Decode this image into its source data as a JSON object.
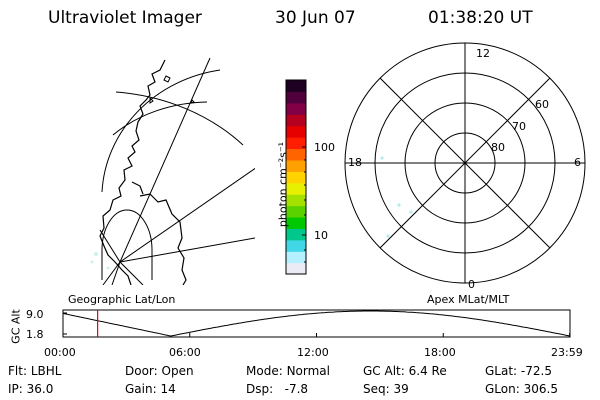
{
  "header": {
    "title": "Ultraviolet Imager",
    "date": "30 Jun 07",
    "time": "01:38:20 UT"
  },
  "colorbar": {
    "label": "photon cm⁻²s⁻¹",
    "ticks": [
      "100",
      "10"
    ],
    "colors": [
      "#ebebf5",
      "#b4f0ff",
      "#41d7e6",
      "#00c88c",
      "#00c800",
      "#5ad200",
      "#a5e100",
      "#e6f000",
      "#ffd200",
      "#ffa000",
      "#ff6400",
      "#ff1e00",
      "#e60000",
      "#b4001e",
      "#820046",
      "#50003c",
      "#1e0023"
    ]
  },
  "left_panel": {
    "label": "Geographic Lat/Lon"
  },
  "right_panel": {
    "label": "Apex MLat/MLT",
    "lat_labels": [
      "60",
      "70",
      "80"
    ],
    "mlt_labels": {
      "top": "12",
      "bottom": "0",
      "left": "18",
      "right": "6"
    }
  },
  "altitude_plot": {
    "ylabel": "GC Alt",
    "yticks": [
      "9.0",
      "1.8"
    ],
    "xticks": [
      "00:00",
      "06:00",
      "12:00",
      "18:00",
      "23:59"
    ],
    "marker_color": "#e60000",
    "marker_time": "01:38:20"
  },
  "info": {
    "row1": [
      {
        "label": "Flt:",
        "value": "LBHL"
      },
      {
        "label": "Door:",
        "value": "Open"
      },
      {
        "label": "Mode:",
        "value": "Normal"
      },
      {
        "label": "GC Alt:",
        "value": "6.4 Re"
      },
      {
        "label": "GLat:",
        "value": "-72.5"
      }
    ],
    "row2": [
      {
        "label": "IP:",
        "value": "36.0"
      },
      {
        "label": "Gain:",
        "value": "14"
      },
      {
        "label": "Dsp:",
        "value": "-7.8"
      },
      {
        "label": "Seq:",
        "value": "39"
      },
      {
        "label": "GLon:",
        "value": "306.5"
      }
    ]
  }
}
